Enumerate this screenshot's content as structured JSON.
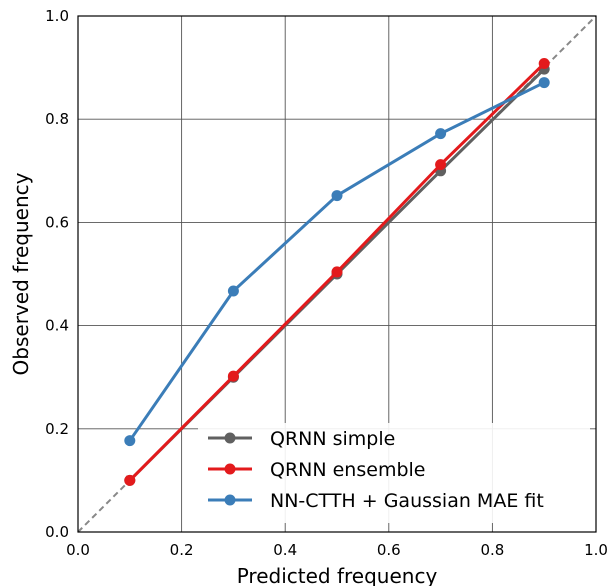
{
  "chart_data": {
    "type": "line",
    "xlabel": "Predicted frequency",
    "ylabel": "Observed frequency",
    "xlim": [
      0.0,
      1.0
    ],
    "ylim": [
      0.0,
      1.0
    ],
    "xticks": [
      "0.0",
      "0.2",
      "0.4",
      "0.6",
      "0.8",
      "1.0"
    ],
    "yticks": [
      "0.0",
      "0.2",
      "0.4",
      "0.6",
      "0.8",
      "1.0"
    ],
    "grid": true,
    "legend_position": "bottom-right",
    "reference_line": {
      "x": [
        0.0,
        1.0
      ],
      "y": [
        0.0,
        1.0
      ],
      "color": "#888888",
      "style": "dashed"
    },
    "x": [
      0.1,
      0.3,
      0.5,
      0.7,
      0.9
    ],
    "series": [
      {
        "name": "QRNN simple",
        "color": "#606060",
        "values": [
          0.1,
          0.3,
          0.5,
          0.7,
          0.897
        ]
      },
      {
        "name": "QRNN ensemble",
        "color": "#e31a1c",
        "values": [
          0.1,
          0.302,
          0.504,
          0.712,
          0.908
        ]
      },
      {
        "name": "NN-CTTH + Gaussian MAE fit",
        "color": "#3b7db8",
        "values": [
          0.177,
          0.467,
          0.652,
          0.772,
          0.871
        ]
      }
    ]
  }
}
